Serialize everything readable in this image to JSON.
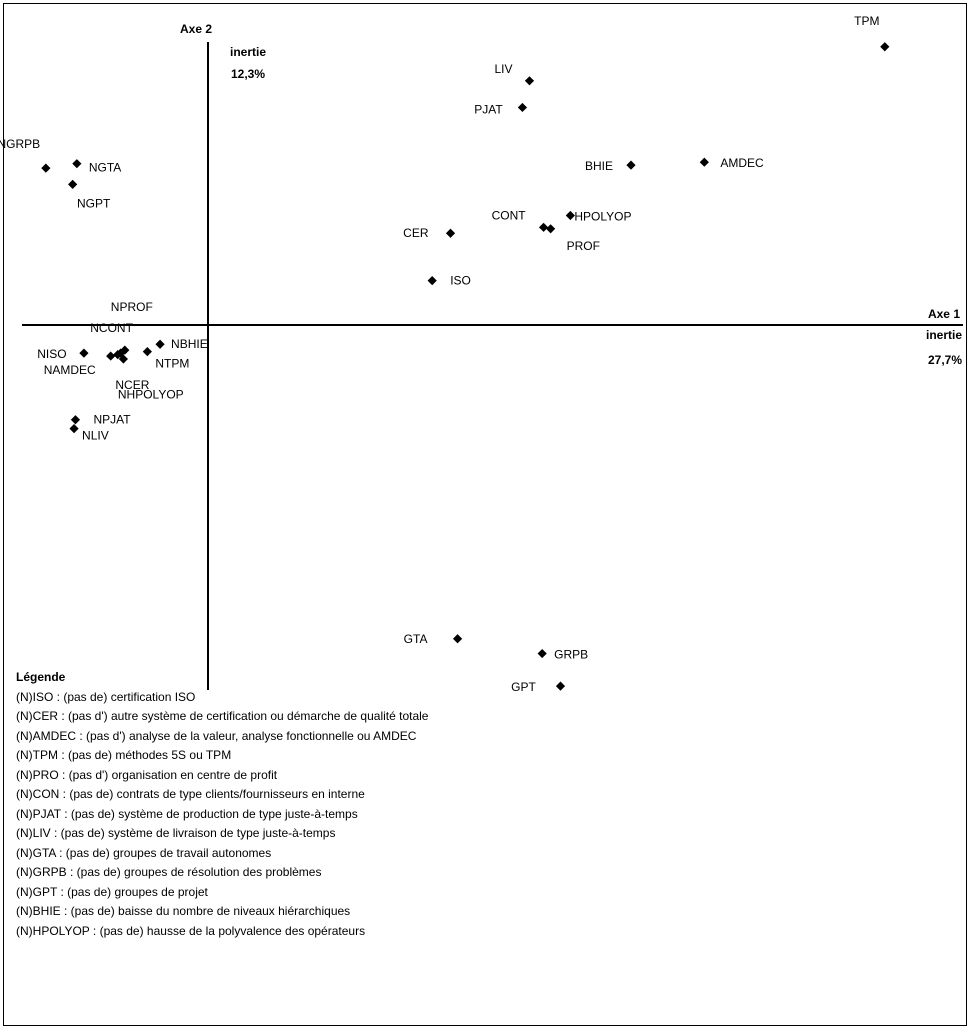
{
  "chart_data": {
    "type": "scatter",
    "title": "",
    "x_axis": {
      "label": "Axe 1",
      "inertia_label": "inertie",
      "inertia_value": "27,7%"
    },
    "y_axis": {
      "label": "Axe 2",
      "inertia_label": "inertie",
      "inertia_value": "12,3%"
    },
    "xlim": [
      -1.3,
      4.9
    ],
    "ylim": [
      -2.4,
      2.0
    ],
    "grid": false,
    "points": [
      {
        "label": "TPM",
        "x": 4.8,
        "y": 1.88
      },
      {
        "label": "LIV",
        "x": 2.28,
        "y": 1.65
      },
      {
        "label": "PJAT",
        "x": 2.23,
        "y": 1.47
      },
      {
        "label": "BHIE",
        "x": 3.0,
        "y": 1.08
      },
      {
        "label": "AMDEC",
        "x": 3.52,
        "y": 1.1
      },
      {
        "label": "HPOLYOP",
        "x": 2.57,
        "y": 0.74
      },
      {
        "label": "CONT",
        "x": 2.38,
        "y": 0.66
      },
      {
        "label": "PROF",
        "x": 2.43,
        "y": 0.65
      },
      {
        "label": "CER",
        "x": 1.72,
        "y": 0.62
      },
      {
        "label": "ISO",
        "x": 1.59,
        "y": 0.3
      },
      {
        "label": "NGRPB",
        "x": -1.15,
        "y": 1.06
      },
      {
        "label": "NGTA",
        "x": -0.93,
        "y": 1.09
      },
      {
        "label": "NGPT",
        "x": -0.96,
        "y": 0.95
      },
      {
        "label": "NPROF",
        "x": -0.59,
        "y": -0.17
      },
      {
        "label": "NCONT",
        "x": -0.62,
        "y": -0.19
      },
      {
        "label": "NISO",
        "x": -0.88,
        "y": -0.19
      },
      {
        "label": "NAMDEC",
        "x": -0.69,
        "y": -0.21
      },
      {
        "label": "NCER",
        "x": -0.6,
        "y": -0.23
      },
      {
        "label": "NHPOLYOP",
        "x": -0.64,
        "y": -0.2
      },
      {
        "label": "NBHIE",
        "x": -0.34,
        "y": -0.13
      },
      {
        "label": "NTPM",
        "x": -0.43,
        "y": -0.18
      },
      {
        "label": "NPJAT",
        "x": -0.94,
        "y": -0.64
      },
      {
        "label": "NLIV",
        "x": -0.95,
        "y": -0.7
      },
      {
        "label": "GTA",
        "x": 1.77,
        "y": -2.12
      },
      {
        "label": "GRPB",
        "x": 2.37,
        "y": -2.22
      },
      {
        "label": "GPT",
        "x": 2.5,
        "y": -2.44
      }
    ]
  },
  "legend": {
    "title": "Légende",
    "items": [
      "(N)ISO : (pas de) certification ISO",
      "(N)CER : (pas d') autre système de certification ou démarche de qualité totale",
      "(N)AMDEC : (pas d') analyse de la valeur, analyse fonctionnelle ou AMDEC",
      "(N)TPM : (pas de) méthodes 5S ou TPM",
      "(N)PRO : (pas d') organisation en centre de profit",
      "(N)CON : (pas de) contrats de type clients/fournisseurs en interne",
      "(N)PJAT : (pas de) système de production de type juste-à-temps",
      "(N)LIV : (pas de) système de livraison de type juste-à-temps",
      "(N)GTA : (pas de) groupes de travail autonomes",
      "(N)GRPB : (pas de) groupes de résolution des problèmes",
      "(N)GPT : (pas de) groupes de projet",
      "(N)BHIE : (pas de) baisse du nombre de niveaux hiérarchiques",
      "(N)HPOLYOP : (pas de) hausse de la polyvalence des opérateurs"
    ]
  }
}
